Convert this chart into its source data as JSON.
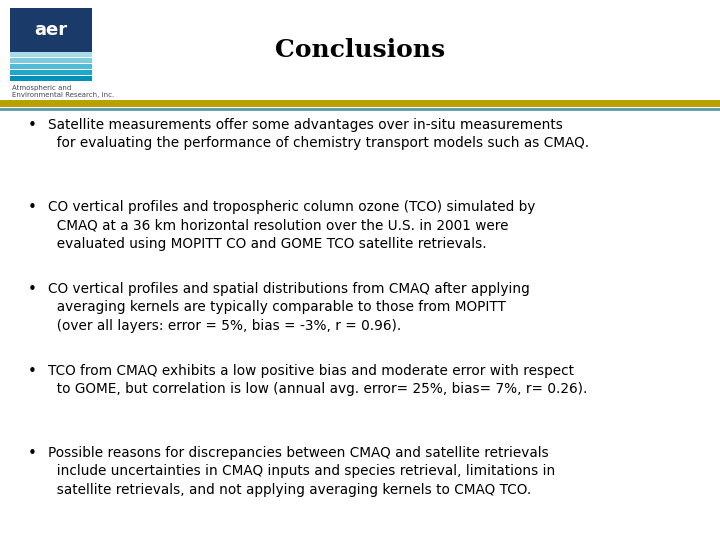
{
  "title": "Conclusions",
  "title_fontsize": 18,
  "title_fontweight": "bold",
  "background_color": "#ffffff",
  "text_color": "#000000",
  "bullet_points": [
    "Satellite measurements offer some advantages over in-situ measurements\n  for evaluating the performance of chemistry transport models such as CMAQ.",
    "CO vertical profiles and tropospheric column ozone (TCO) simulated by\n  CMAQ at a 36 km horizontal resolution over the U.S. in 2001 were\n  evaluated using MOPITT CO and GOME TCO satellite retrievals.",
    "CO vertical profiles and spatial distributions from CMAQ after applying\n  averaging kernels are typically comparable to those from MOPITT\n  (over all layers: error = 5%, bias = -3%, r = 0.96).",
    "TCO from CMAQ exhibits a low positive bias and moderate error with respect\n  to GOME, but correlation is low (annual avg. error= 25%, bias= 7%, r= 0.26).",
    "Possible reasons for discrepancies between CMAQ and satellite retrievals\n  include uncertainties in CMAQ inputs and species retrieval, limitations in\n  satellite retrievals, and not applying averaging kernels to CMAQ TCO."
  ],
  "bullet_fontsize": 9.8,
  "gold_bar_color": "#b8a000",
  "teal_bar_color": "#5599aa",
  "logo_blue_color": "#1a3a6a",
  "logo_text": "aer",
  "logo_subtext": "Atmospheric and\nEnvironmental Research, Inc.",
  "stripe_colors": [
    "#a8dce8",
    "#7ecce0",
    "#50bcd8",
    "#20a8cc",
    "#0090b8"
  ]
}
